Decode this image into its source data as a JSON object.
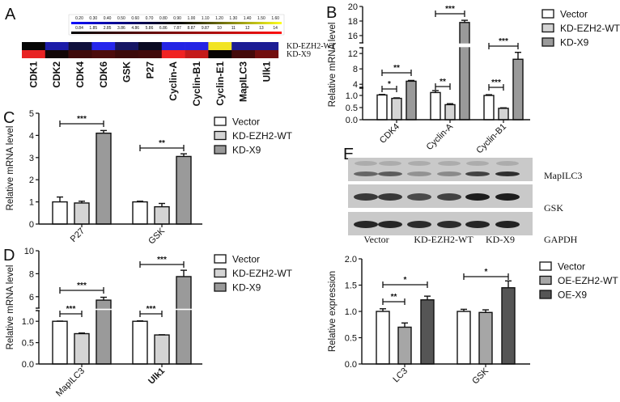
{
  "panel_letters": [
    "A",
    "B",
    "C",
    "D",
    "E"
  ],
  "heatmap": {
    "scale_top_labels": [
      "0.20",
      "0.30",
      "0.40",
      "0.50",
      "0.60",
      "0.70",
      "0.80",
      "0.90",
      "1.00",
      "1.10",
      "1.20",
      "1.30",
      "1.40",
      "1.50",
      "1.60"
    ],
    "scale_bottom_labels": [
      "0.84",
      "1.85",
      "2.85",
      "3.86",
      "4.86",
      "5.86",
      "6.86",
      "7.87",
      "8.87",
      "9.87",
      "10",
      "11",
      "12",
      "13",
      "14"
    ],
    "genes": [
      "CDK1",
      "CDK2",
      "CDK4",
      "CDK6",
      "GSK",
      "P27",
      "Cyclin-A",
      "Cyclin-B1",
      "Cyclin-E1",
      "MapILC3",
      "Ulk1"
    ],
    "rows": [
      {
        "label": "KD-EZH2-WT",
        "colors": [
          "#060606",
          "#1c1ca8",
          "#10103c",
          "#2626ec",
          "#161664",
          "#0a0a22",
          "#2424e4",
          "#2424e4",
          "#f2e424",
          "#1c1c94",
          "#1c1c94"
        ]
      },
      {
        "label": "KD-X9",
        "colors": [
          "#e82222",
          "#120606",
          "#3e0a0a",
          "#4c0c0c",
          "#3c0a0a",
          "#420a0a",
          "#f02222",
          "#c41a1a",
          "#080404",
          "#440a0a",
          "#720e0e"
        ]
      }
    ]
  },
  "blot": {
    "rows": [
      "MapILC3",
      "GSK",
      "GAPDH"
    ],
    "lanes": [
      "Vector",
      "KD-EZH2-WT",
      "KD-X9"
    ]
  },
  "chart_data": [
    {
      "id": "B",
      "type": "bar",
      "ylabel": "Relative mRNA level",
      "xlabel": "",
      "categories": [
        "CDK4",
        "Cyclin-A",
        "Cyclin-B1"
      ],
      "ylim": [
        0,
        20
      ],
      "y_breaks": [
        [
          1.3,
          3.2
        ],
        [
          13.5,
          15
        ]
      ],
      "yticks": [
        "0.0",
        "0.5",
        "1.0",
        "4",
        "8",
        "12",
        "16",
        "18",
        "20"
      ],
      "series": [
        {
          "name": "Vector",
          "color": "#ffffff",
          "values": [
            1.02,
            1.12,
            1.0
          ],
          "errors": [
            0.02,
            0.08,
            0.03
          ]
        },
        {
          "name": "KD-EZH2-WT",
          "color": "#d4d4d4",
          "values": [
            0.88,
            0.62,
            0.47
          ],
          "errors": [
            0.02,
            0.04,
            0.02
          ]
        },
        {
          "name": "KD-X9",
          "color": "#9a9a9a",
          "values": [
            4.8,
            17.8,
            10.5
          ],
          "errors": [
            0.2,
            0.3,
            1.8
          ]
        }
      ],
      "comparisons": [
        {
          "category": "CDK4",
          "from": "Vector",
          "to": "KD-EZH2-WT",
          "label": "*"
        },
        {
          "category": "CDK4",
          "from": "Vector",
          "to": "KD-X9",
          "label": "**"
        },
        {
          "category": "Cyclin-A",
          "from": "Vector",
          "to": "KD-EZH2-WT",
          "label": "**"
        },
        {
          "category": "Cyclin-A",
          "from": "Vector",
          "to": "KD-X9",
          "label": "***"
        },
        {
          "category": "Cyclin-B1",
          "from": "Vector",
          "to": "KD-EZH2-WT",
          "label": "***"
        },
        {
          "category": "Cyclin-B1",
          "from": "Vector",
          "to": "KD-X9",
          "label": "***"
        }
      ]
    },
    {
      "id": "C",
      "type": "bar",
      "ylabel": "Relative mRNA level",
      "xlabel": "",
      "categories": [
        "P27",
        "GSK"
      ],
      "ylim": [
        0,
        5
      ],
      "y_breaks": [],
      "yticks": [
        "0",
        "1",
        "2",
        "3",
        "4",
        "5"
      ],
      "series": [
        {
          "name": "Vector",
          "color": "#ffffff",
          "values": [
            1.0,
            1.0
          ],
          "errors": [
            0.22,
            0.03
          ]
        },
        {
          "name": "KD-EZH2-WT",
          "color": "#d4d4d4",
          "values": [
            0.95,
            0.78
          ],
          "errors": [
            0.08,
            0.15
          ]
        },
        {
          "name": "KD-X9",
          "color": "#9a9a9a",
          "values": [
            4.1,
            3.05
          ],
          "errors": [
            0.12,
            0.12
          ]
        }
      ],
      "comparisons": [
        {
          "category": "P27",
          "from": "Vector",
          "to": "KD-X9",
          "label": "***"
        },
        {
          "category": "GSK",
          "from": "Vector",
          "to": "KD-X9",
          "label": "**"
        }
      ]
    },
    {
      "id": "D",
      "type": "bar",
      "ylabel": "Relative mRNA level",
      "xlabel": "",
      "categories": [
        "MapILC3",
        "Ulk1"
      ],
      "ylim": [
        0,
        10
      ],
      "y_breaks": [
        [
          1.25,
          5
        ]
      ],
      "yticks": [
        "0.0",
        "0.5",
        "1.0",
        "6",
        "8",
        "10"
      ],
      "series": [
        {
          "name": "Vector",
          "color": "#ffffff",
          "values": [
            1.0,
            1.0
          ],
          "errors": [
            0.005,
            0.01
          ]
        },
        {
          "name": "KD-EZH2-WT",
          "color": "#d4d4d4",
          "values": [
            0.71,
            0.68
          ],
          "errors": [
            0.015,
            0.005
          ]
        },
        {
          "name": "KD-X9",
          "color": "#9a9a9a",
          "values": [
            5.7,
            7.75
          ],
          "errors": [
            0.25,
            0.55
          ]
        }
      ],
      "comparisons": [
        {
          "category": "MapILC3",
          "from": "Vector",
          "to": "KD-EZH2-WT",
          "label": "***"
        },
        {
          "category": "MapILC3",
          "from": "Vector",
          "to": "KD-X9",
          "label": "***"
        },
        {
          "category": "Ulk1",
          "from": "Vector",
          "to": "KD-EZH2-WT",
          "label": "***"
        },
        {
          "category": "Ulk1",
          "from": "Vector",
          "to": "KD-X9",
          "label": "***"
        }
      ]
    },
    {
      "id": "E",
      "type": "bar",
      "ylabel": "Relative expression",
      "xlabel": "",
      "categories": [
        "LC3",
        "GSK"
      ],
      "ylim": [
        0,
        2
      ],
      "y_breaks": [],
      "yticks": [
        "0.0",
        "0.5",
        "1.0",
        "1.5",
        "2.0"
      ],
      "series": [
        {
          "name": "Vector",
          "color": "#ffffff",
          "values": [
            1.0,
            1.0
          ],
          "errors": [
            0.05,
            0.04
          ]
        },
        {
          "name": "OE-EZH2-WT",
          "color": "#a6a6a6",
          "values": [
            0.7,
            0.98
          ],
          "errors": [
            0.08,
            0.05
          ]
        },
        {
          "name": "OE-X9",
          "color": "#555555",
          "values": [
            1.22,
            1.45
          ],
          "errors": [
            0.07,
            0.13
          ]
        }
      ],
      "comparisons": [
        {
          "category": "LC3",
          "from": "Vector",
          "to": "OE-EZH2-WT",
          "label": "**"
        },
        {
          "category": "LC3",
          "from": "Vector",
          "to": "OE-X9",
          "label": "*"
        },
        {
          "category": "GSK",
          "from": "Vector",
          "to": "OE-X9",
          "label": "*"
        }
      ]
    }
  ]
}
